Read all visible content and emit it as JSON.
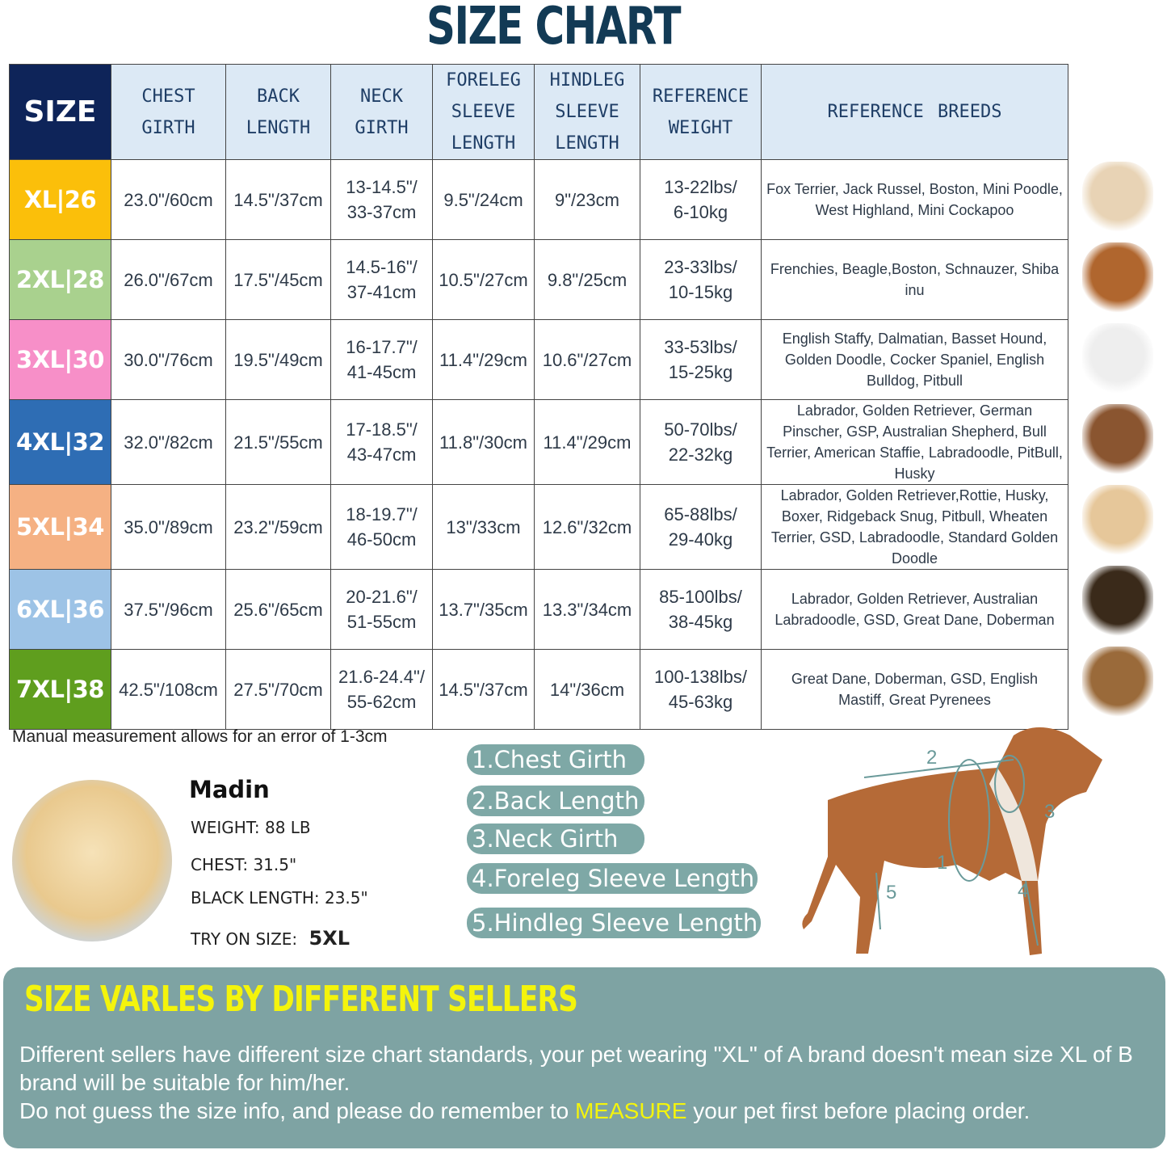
{
  "title": "SIZE CHART",
  "table": {
    "headers": [
      "SIZE",
      "CHEST GIRTH",
      "BACK LENGTH",
      "NECK GIRTH",
      "FORELEG SLEEVE LENGTH",
      "HINDLEG SLEEVE LENGTH",
      "REFERENCE WEIGHT",
      "REFERENCE BREEDS"
    ],
    "rows": [
      {
        "size": "XL|26",
        "color": "#fbbf0a",
        "chest": "23.0\"/60cm",
        "back": "14.5\"/37cm",
        "neck": "13-14.5\"/ 33-37cm",
        "foreleg": "9.5\"/24cm",
        "hindleg": "9\"/23cm",
        "weight": "13-22lbs/ 6-10kg",
        "breeds": "Fox Terrier, Jack Russel, Boston, Mini Poodle, West Highland, Mini Cockapoo"
      },
      {
        "size": "2XL|28",
        "color": "#a9d18e",
        "chest": "26.0\"/67cm",
        "back": "17.5\"/45cm",
        "neck": "14.5-16\"/ 37-41cm",
        "foreleg": "10.5\"/27cm",
        "hindleg": "9.8\"/25cm",
        "weight": "23-33lbs/ 10-15kg",
        "breeds": "Frenchies, Beagle,Boston, Schnauzer, Shiba inu"
      },
      {
        "size": "3XL|30",
        "color": "#f78fc8",
        "chest": "30.0\"/76cm",
        "back": "19.5\"/49cm",
        "neck": "16-17.7\"/ 41-45cm",
        "foreleg": "11.4\"/29cm",
        "hindleg": "10.6\"/27cm",
        "weight": "33-53lbs/ 15-25kg",
        "breeds": "English Staffy, Dalmatian, Basset Hound, Golden Doodle, Cocker Spaniel, English Bulldog, Pitbull"
      },
      {
        "size": "4XL|32",
        "color": "#2e6db4",
        "chest": "32.0\"/82cm",
        "back": "21.5\"/55cm",
        "neck": "17-18.5\"/ 43-47cm",
        "foreleg": "11.8\"/30cm",
        "hindleg": "11.4\"/29cm",
        "weight": "50-70lbs/ 22-32kg",
        "breeds": "Labrador, Golden Retriever, German Pinscher, GSP, Australian Shepherd, Bull Terrier, American Staffie, Labradoodle, PitBull, Husky"
      },
      {
        "size": "5XL|34",
        "color": "#f5b183",
        "chest": "35.0\"/89cm",
        "back": "23.2\"/59cm",
        "neck": "18-19.7\"/ 46-50cm",
        "foreleg": "13\"/33cm",
        "hindleg": "12.6\"/32cm",
        "weight": "65-88lbs/ 29-40kg",
        "breeds": "Labrador, Golden Retriever,Rottie, Husky, Boxer, Ridgeback Snug, Pitbull, Wheaten Terrier, GSD, Labradoodle,  Standard Golden Doodle"
      },
      {
        "size": "6XL|36",
        "color": "#9dc3e6",
        "chest": "37.5\"/96cm",
        "back": "25.6\"/65cm",
        "neck": "20-21.6\"/ 51-55cm",
        "foreleg": "13.7\"/35cm",
        "hindleg": "13.3\"/34cm",
        "weight": "85-100lbs/ 38-45kg",
        "breeds": "Labrador, Golden Retriever, Australian Labradoodle, GSD, Great Dane, Doberman"
      },
      {
        "size": "7XL|38",
        "color": "#5f9e1e",
        "chest": "42.5\"/108cm",
        "back": "27.5\"/70cm",
        "neck": "21.6-24.4\"/ 55-62cm",
        "foreleg": "14.5\"/37cm",
        "hindleg": "14\"/36cm",
        "weight": "100-138lbs/ 45-63kg",
        "breeds": "Great Dane, Doberman, GSD, English Mastiff, Great Pyrenees"
      }
    ]
  },
  "note": "Manual measurement allows for an error of 1-3cm",
  "example": {
    "name": "Madin",
    "weight": "WEIGHT: 88 LB",
    "chest": "CHEST: 31.5\"",
    "length": "BLACK LENGTH: 23.5\"",
    "try_label": "TRY ON SIZE:",
    "try_value": "5XL"
  },
  "measures": [
    "1.Chest Girth",
    "2.Back Length",
    "3.Neck Girth",
    "4.Foreleg Sleeve Length",
    "5.Hindleg Sleeve Length"
  ],
  "diagram_numbers": [
    "1",
    "2",
    "3",
    "4",
    "5"
  ],
  "panel": {
    "title": "SIZE VARLES BY DIFFERENT SELLERS",
    "line1": "Different sellers have different size chart standards, your pet wearing \"XL\" of A brand doesn't mean size  XL of B brand will be suitable for him/her.",
    "line2a": "Do not guess the size info, and please do remember to ",
    "line2b": "MEASURE",
    "line2c": " your pet first before placing order."
  }
}
